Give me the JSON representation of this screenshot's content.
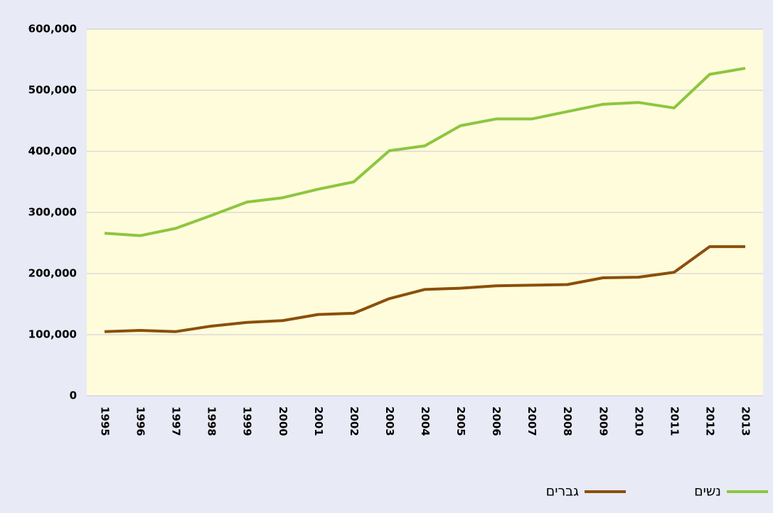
{
  "chart_data": {
    "type": "line",
    "categories": [
      "1995",
      "1996",
      "1997",
      "1998",
      "1999",
      "2000",
      "2001",
      "2002",
      "2003",
      "2004",
      "2005",
      "2006",
      "2007",
      "2008",
      "2009",
      "2010",
      "2011",
      "2012",
      "2013"
    ],
    "series": [
      {
        "name": "נשים",
        "color": "#8dc63f",
        "values": [
          266000,
          262000,
          274000,
          295000,
          317000,
          324000,
          338000,
          350000,
          401000,
          409000,
          442000,
          453000,
          453000,
          465000,
          477000,
          480000,
          471000,
          526000,
          536000
        ]
      },
      {
        "name": "גברים",
        "color": "#8b4f0a",
        "values": [
          105000,
          107000,
          105000,
          114000,
          120000,
          123000,
          133000,
          135000,
          159000,
          174000,
          176000,
          180000,
          181000,
          182000,
          193000,
          194000,
          202000,
          244000,
          244000
        ]
      }
    ],
    "ylim": [
      0,
      600000
    ],
    "yticks": [
      0,
      {
        "value": 100000,
        "label": "100,000"
      },
      {
        "value": 200000,
        "label": "200,000"
      },
      {
        "value": 300000,
        "label": "300,000"
      },
      {
        "value": 400000,
        "label": "400,000"
      },
      {
        "value": 500000,
        "label": "500,000"
      },
      {
        "value": 600000,
        "label": "600,000"
      }
    ],
    "grid": true,
    "legend": "bottom-right"
  }
}
